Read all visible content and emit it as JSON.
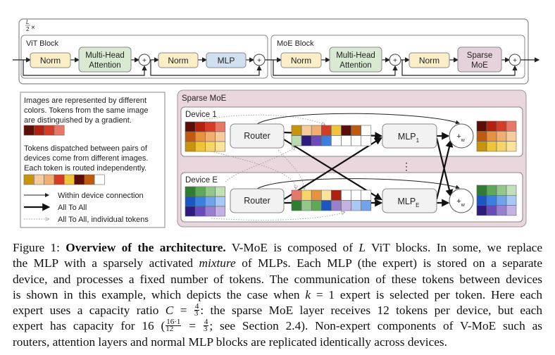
{
  "figure": {
    "repeat_label": {
      "num": "L",
      "den": "2",
      "times": "×"
    },
    "vit_block": {
      "title": "ViT Block",
      "norm1": "Norm",
      "attn_l1": "Multi-Head",
      "attn_l2": "Attention",
      "norm2": "Norm",
      "mlp": "MLP"
    },
    "moe_block": {
      "title": "MoE Block",
      "norm1": "Norm",
      "attn_l1": "Multi-Head",
      "attn_l2": "Attention",
      "norm2": "Norm",
      "moe_l1": "Sparse",
      "moe_l2": "MoE"
    },
    "plus": "+",
    "legend": {
      "text1": [
        "Images are represented by different",
        "colors. Tokens from the same image",
        "are distinguished by a gradient."
      ],
      "gradient_colors": [
        "#5c0d06",
        "#b2200e",
        "#d63c25",
        "#e57866"
      ],
      "text2": [
        "Tokens dispatched between pairs of",
        "devices come from different images.",
        "Each token is routed independently."
      ],
      "mixed_colors": [
        "#c8940b",
        "#f7cc9c",
        "#f2ae6e",
        "#d63c25",
        "#f0c437",
        "#5c0d06",
        "#c05a0f",
        "#ffffff"
      ],
      "arrows": [
        {
          "style": "thin",
          "label": "Within device connection"
        },
        {
          "style": "thick",
          "label": "All To All"
        },
        {
          "style": "dotted",
          "label": "All To All, individual tokens"
        }
      ]
    },
    "sparse_moe": {
      "title": "Sparse MoE",
      "fill": "#ead6dd",
      "ellipsis": "⋮",
      "devices": [
        {
          "label": "Device 1",
          "router": "Router",
          "mlp": "MLP",
          "mlp_sub": "1",
          "combine": "+",
          "combine_sub": "w",
          "input_tokens": [
            [
              "#5c0d06",
              "#b2200e",
              "#d63c25",
              "#e57866"
            ],
            [
              "#c05a0f",
              "#e8913f",
              "#f2ae6e",
              "#f7cc9c"
            ],
            [
              "#c8940b",
              "#f0c437",
              "#f7d466",
              "#fbe39a"
            ]
          ],
          "dispatch": [
            [
              "#c8940b",
              "#f7cc9c",
              "#f2ae6e",
              "#d63c25",
              "#f0c437",
              "#5c0d06",
              "#c05a0f",
              "#ffffff"
            ],
            [
              "#b9dcb0",
              "#2f1b7d",
              "#6a4bb8",
              "#3b7fe0",
              "#ffffff",
              "#ffffff",
              "#ffffff",
              "#ffffff"
            ]
          ],
          "output_tokens": [
            [
              "#5c0d06",
              "#b2200e",
              "#d63c25",
              "#e57866"
            ],
            [
              "#c05a0f",
              "#e8913f",
              "#f2ae6e",
              "#f7cc9c"
            ],
            [
              "#c8940b",
              "#f0c437",
              "#f7d466",
              "#fbe39a"
            ]
          ]
        },
        {
          "label": "Device E",
          "router": "Router",
          "mlp": "MLP",
          "mlp_sub": "E",
          "combine": "+",
          "combine_sub": "w",
          "input_tokens": [
            [
              "#2e7d32",
              "#5fa85a",
              "#94c88b",
              "#c2e0b8"
            ],
            [
              "#1a56c4",
              "#3b7fe0",
              "#6fa3eb",
              "#a8c8f5"
            ],
            [
              "#2f1b7d",
              "#6a4bb8",
              "#9a7ed0",
              "#c4b2e3"
            ]
          ],
          "dispatch": [
            [
              "#e57866",
              "#f7d466",
              "#e8913f",
              "#fbe39a",
              "#b2200e",
              "#ffffff",
              "#ffffff",
              "#ffffff"
            ],
            [
              "#2e7d32",
              "#94c88b",
              "#5fa85a",
              "#1a56c4",
              "#9a7ed0",
              "#c4b2e3",
              "#a8c8f5",
              "#6fa3eb"
            ]
          ],
          "output_tokens": [
            [
              "#2e7d32",
              "#5fa85a",
              "#94c88b",
              "#c2e0b8"
            ],
            [
              "#1a56c4",
              "#3b7fe0",
              "#6fa3eb",
              "#a8c8f5"
            ],
            [
              "#2f1b7d",
              "#6a4bb8",
              "#9a7ed0",
              "#c4b2e3"
            ]
          ]
        }
      ]
    },
    "colors": {
      "norm": "#fcefc7",
      "attention": "#d9ead3",
      "mlp": "#d0e0f0",
      "sparse_moe": "#e6d2dc",
      "router": "#f2f2f2"
    }
  },
  "caption": {
    "l1": {
      "a": "Figure 1: ",
      "b": "Overview of the architecture.",
      "c": " V-MoE is composed of ",
      "d": "L",
      "e": " ViT blocks. In some, we replace"
    },
    "l2": {
      "a": "the MLP with a sparsely activated ",
      "b": "mixture",
      "c": " of MLPs. Each MLP (the expert) is stored on a separate"
    },
    "l3": "device, and processes a fixed number of tokens. The communication of these tokens between devices",
    "l4": {
      "a": "is shown in this example, which depicts the case when ",
      "b": "k",
      "c": " = 1 expert is selected per token. Here each"
    },
    "l5": {
      "a": "expert uses a capacity ratio ",
      "b": "C",
      "c": " = ",
      "fn": "4",
      "fd": "3",
      "d": ": the sparse MoE layer receives 12 tokens per device, but each"
    },
    "l6": {
      "a": "expert has capacity for 16 (",
      "f1n": "16·1",
      "f1d": "12",
      "b": " = ",
      "f2n": "4",
      "f2d": "3",
      "c": "; see Section 2.4). Non-expert components of V-MoE such as"
    },
    "l7": "routers, attention layers and normal MLP blocks are replicated identically across devices."
  }
}
